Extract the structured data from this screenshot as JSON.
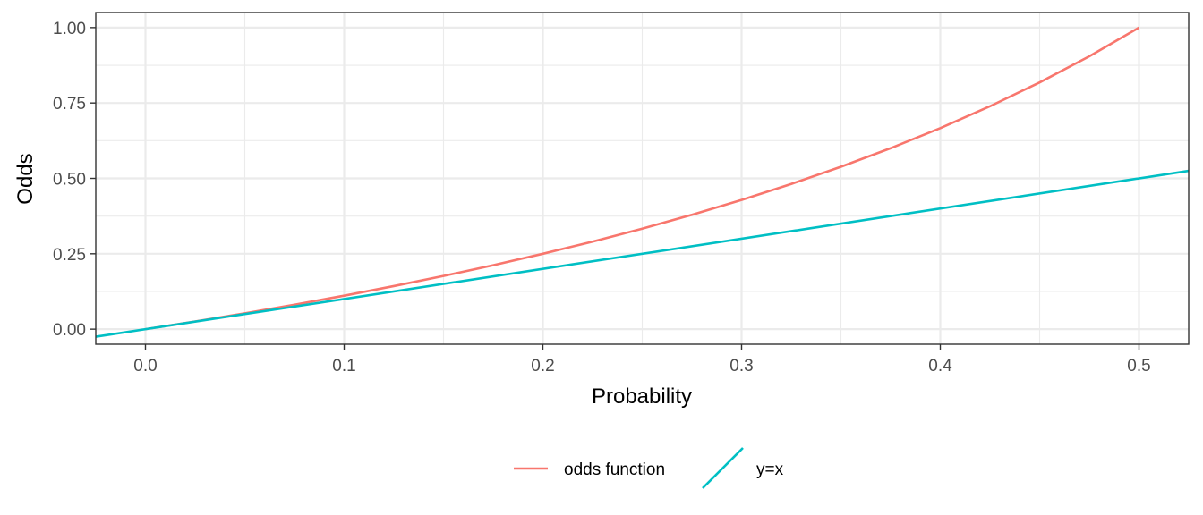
{
  "chart_data": {
    "type": "line",
    "xlabel": "Probability",
    "ylabel": "Odds",
    "xlim": [
      -0.025,
      0.525
    ],
    "ylim": [
      -0.05,
      1.05
    ],
    "x_ticks": [
      0.0,
      0.1,
      0.2,
      0.3,
      0.4,
      0.5
    ],
    "x_tick_labels": [
      "0.0",
      "0.1",
      "0.2",
      "0.3",
      "0.4",
      "0.5"
    ],
    "y_ticks": [
      0.0,
      0.25,
      0.5,
      0.75,
      1.0
    ],
    "y_tick_labels": [
      "0.00",
      "0.25",
      "0.50",
      "0.75",
      "1.00"
    ],
    "grid": true,
    "legend_position": "bottom",
    "series": [
      {
        "name": "odds function",
        "color": "#F8766D",
        "x": [
          0.0,
          0.025,
          0.05,
          0.075,
          0.1,
          0.125,
          0.15,
          0.175,
          0.2,
          0.225,
          0.25,
          0.275,
          0.3,
          0.325,
          0.35,
          0.375,
          0.4,
          0.425,
          0.45,
          0.475,
          0.5
        ],
        "y": [
          0.0,
          0.0256,
          0.0526,
          0.0811,
          0.1111,
          0.1429,
          0.1765,
          0.2121,
          0.25,
          0.2903,
          0.3333,
          0.3793,
          0.4286,
          0.4815,
          0.5385,
          0.6,
          0.6667,
          0.7391,
          0.8182,
          0.9048,
          1.0
        ]
      },
      {
        "name": "y=x",
        "color": "#00BFC4",
        "x": [
          -0.025,
          0.525
        ],
        "y": [
          -0.025,
          0.525
        ]
      }
    ]
  }
}
